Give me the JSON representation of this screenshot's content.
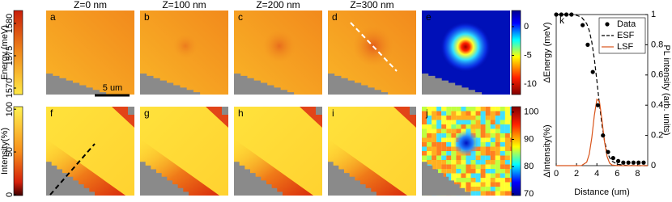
{
  "figure": {
    "column_titles": [
      "Z=0 nm",
      "Z=100 nm",
      "Z=200 nm",
      "Z=300 nm"
    ],
    "panel_letters": [
      "a",
      "b",
      "c",
      "d",
      "e",
      "f",
      "g",
      "h",
      "i",
      "j"
    ],
    "scale_bar": "5 um",
    "colorbars": [
      {
        "label": "Energy (meV)",
        "ylim": [
          1569,
          1582
        ],
        "yticks": [
          1570,
          1575,
          1580
        ]
      },
      {
        "label": "Intensity(%)",
        "ylim": [
          -1,
          103
        ],
        "yticks": [
          0,
          50,
          100
        ]
      },
      {
        "label": "ΔEnergy (meV)",
        "ylim": [
          -11.8,
          2.8
        ],
        "yticks": [
          0,
          -5,
          -10
        ]
      },
      {
        "label": "ΔIntensity(%)",
        "ylim": [
          69.4,
          102
        ],
        "yticks": [
          70,
          80,
          90,
          100
        ]
      }
    ]
  },
  "chart_data": {
    "type": "line",
    "panel_letter": "k",
    "xlabel": "Distance (um)",
    "ylabel": "ΔEnergy (meV)",
    "y2label": "PL intensity (arb. units)",
    "xlim": [
      0,
      9
    ],
    "xticks": [
      0,
      2,
      4,
      6,
      8
    ],
    "y2lim": [
      0,
      1
    ],
    "y2ticks": [
      0,
      0.2,
      0.4,
      0.6,
      0.8,
      1
    ],
    "legend": "upper right",
    "points": {
      "name": "Data",
      "color": "#000000",
      "x": [
        0,
        0.5,
        1,
        1.5,
        2.6,
        3.1,
        3.6,
        4.1,
        4.6,
        5.1,
        5.6,
        6.1,
        6.6,
        7.1,
        7.6,
        8.1,
        8.6
      ],
      "values": [
        1,
        1,
        1,
        1,
        0.93,
        0.8,
        0.62,
        0.4,
        0.2,
        0.09,
        0.05,
        0.03,
        0.02,
        0.02,
        0.02,
        0.02,
        0.02
      ]
    },
    "x": [
      0,
      1,
      2,
      2.5,
      3,
      3.25,
      3.5,
      3.75,
      4,
      4.25,
      4.5,
      4.75,
      5,
      5.25,
      5.5,
      6,
      7,
      8,
      9
    ],
    "series": [
      {
        "name": "ESF",
        "color": "#000000",
        "axis": "y2",
        "values": [
          1,
          1,
          0.995,
          0.982,
          0.94,
          0.894,
          0.818,
          0.706,
          0.562,
          0.407,
          0.269,
          0.164,
          0.095,
          0.053,
          0.029,
          0.009,
          0.001,
          0,
          0
        ]
      },
      {
        "name": "LSF",
        "color": "#d9541a",
        "axis": "y2",
        "values": [
          0,
          0,
          0,
          0.001,
          0.023,
          0.076,
          0.185,
          0.333,
          0.439,
          0.426,
          0.303,
          0.159,
          0.061,
          0.017,
          0.004,
          0,
          0,
          0,
          0
        ]
      }
    ]
  }
}
